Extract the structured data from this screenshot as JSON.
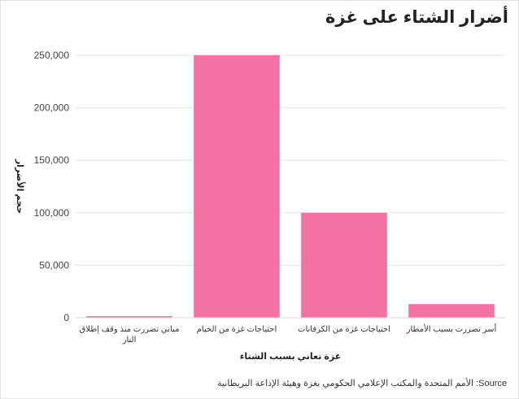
{
  "title": "أضرار الشتاء على غزة",
  "source": "Source: الأمم المتحدة والمكتب الإعلامي الحكومي بغزة وهيئة الإذاعة البريطانية",
  "colors": {
    "bar": "#f472a3",
    "grid": "#e6e6e6",
    "axis": "#d9d9d9"
  },
  "chart_data": {
    "type": "bar",
    "categories": [
      "مباني تضررت منذ وقف إطلاق النار",
      "احتياجات غزة من الخيام",
      "احتياجات غزة من الكرفانات",
      "أسر تضررت بسبب الأمطار"
    ],
    "category_lines": [
      [
        "مباني تضررت منذ وقف إطلاق",
        "النار"
      ],
      [
        "احتياجات غزة من الخيام"
      ],
      [
        "احتياجات غزة من الكرفانات"
      ],
      [
        "أسر تضررت بسبب الأمطار"
      ]
    ],
    "values": [
      1500,
      250000,
      100000,
      13000
    ],
    "xlabel": "غزة تعاني بسبب الشتاء",
    "ylabel": "حجم الأضرار",
    "ylim": [
      0,
      250000
    ],
    "yticks": [
      0,
      50000,
      100000,
      150000,
      200000,
      250000
    ],
    "ytick_labels": [
      "0",
      "50,000",
      "100,000",
      "150,000",
      "200,000",
      "250,000"
    ],
    "grid": true,
    "legend": "none"
  }
}
